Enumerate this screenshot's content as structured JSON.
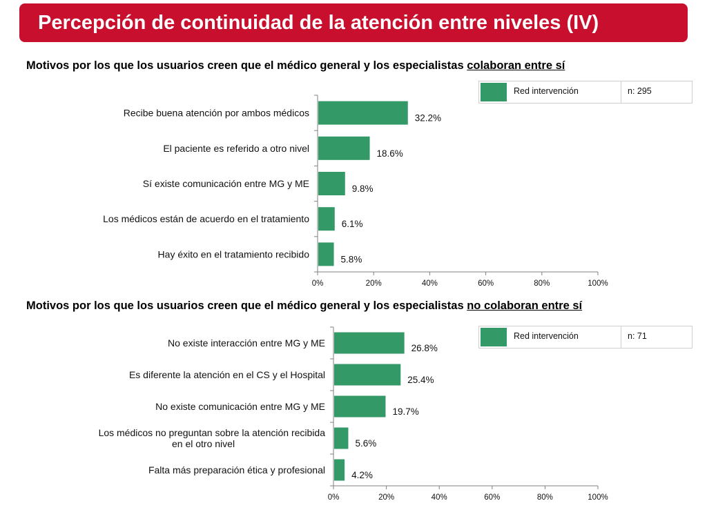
{
  "header": {
    "title": "Percepción de continuidad de la atención entre niveles  (IV)"
  },
  "colors": {
    "title_bg": "#c8102e",
    "bar": "#339966",
    "axis": "#7f7f7f"
  },
  "section1": {
    "subtitle_prefix": "Motivos por los que los usuarios creen que el médico general y los especialistas ",
    "subtitle_emphasis": "colaboran entre sí",
    "legend": {
      "label": "Red intervención",
      "n": "n: 295"
    }
  },
  "section2": {
    "subtitle_prefix": "Motivos por los que los usuarios creen que el médico general y los especialistas ",
    "subtitle_emphasis": "no colaboran entre sí",
    "legend": {
      "label": "Red intervención",
      "n": "n: 71"
    }
  },
  "chart_data": [
    {
      "type": "bar",
      "orientation": "horizontal",
      "categories": [
        "Recibe buena atención por ambos médicos",
        "El paciente es referido a otro nivel",
        "Sí existe comunicación entre MG y ME",
        "Los médicos están de acuerdo en el tratamiento",
        "Hay éxito en el tratamiento recibido"
      ],
      "series": [
        {
          "name": "Red intervención",
          "values": [
            32.2,
            18.6,
            9.8,
            6.1,
            5.8
          ]
        }
      ],
      "data_labels": [
        "32.2%",
        "18.6%",
        "9.8%",
        "6.1%",
        "5.8%"
      ],
      "xlim": [
        0,
        100
      ],
      "xticks": [
        "0%",
        "20%",
        "40%",
        "60%",
        "80%",
        "100%"
      ],
      "grid": false,
      "legend_position": "top-right"
    },
    {
      "type": "bar",
      "orientation": "horizontal",
      "categories": [
        "No existe interacción entre MG y ME",
        "Es diferente la atención en el CS y el Hospital",
        "No existe comunicación entre MG y ME",
        "Los médicos no preguntan sobre la atención recibida en el otro nivel",
        "Falta más preparación ética y profesional"
      ],
      "series": [
        {
          "name": "Red intervención",
          "values": [
            26.8,
            25.4,
            19.7,
            5.6,
            4.2
          ]
        }
      ],
      "data_labels": [
        "26.8%",
        "25.4%",
        "19.7%",
        "5.6%",
        "4.2%"
      ],
      "xlim": [
        0,
        100
      ],
      "xticks": [
        "0%",
        "20%",
        "40%",
        "60%",
        "80%",
        "100%"
      ],
      "grid": false,
      "legend_position": "top-right"
    }
  ]
}
